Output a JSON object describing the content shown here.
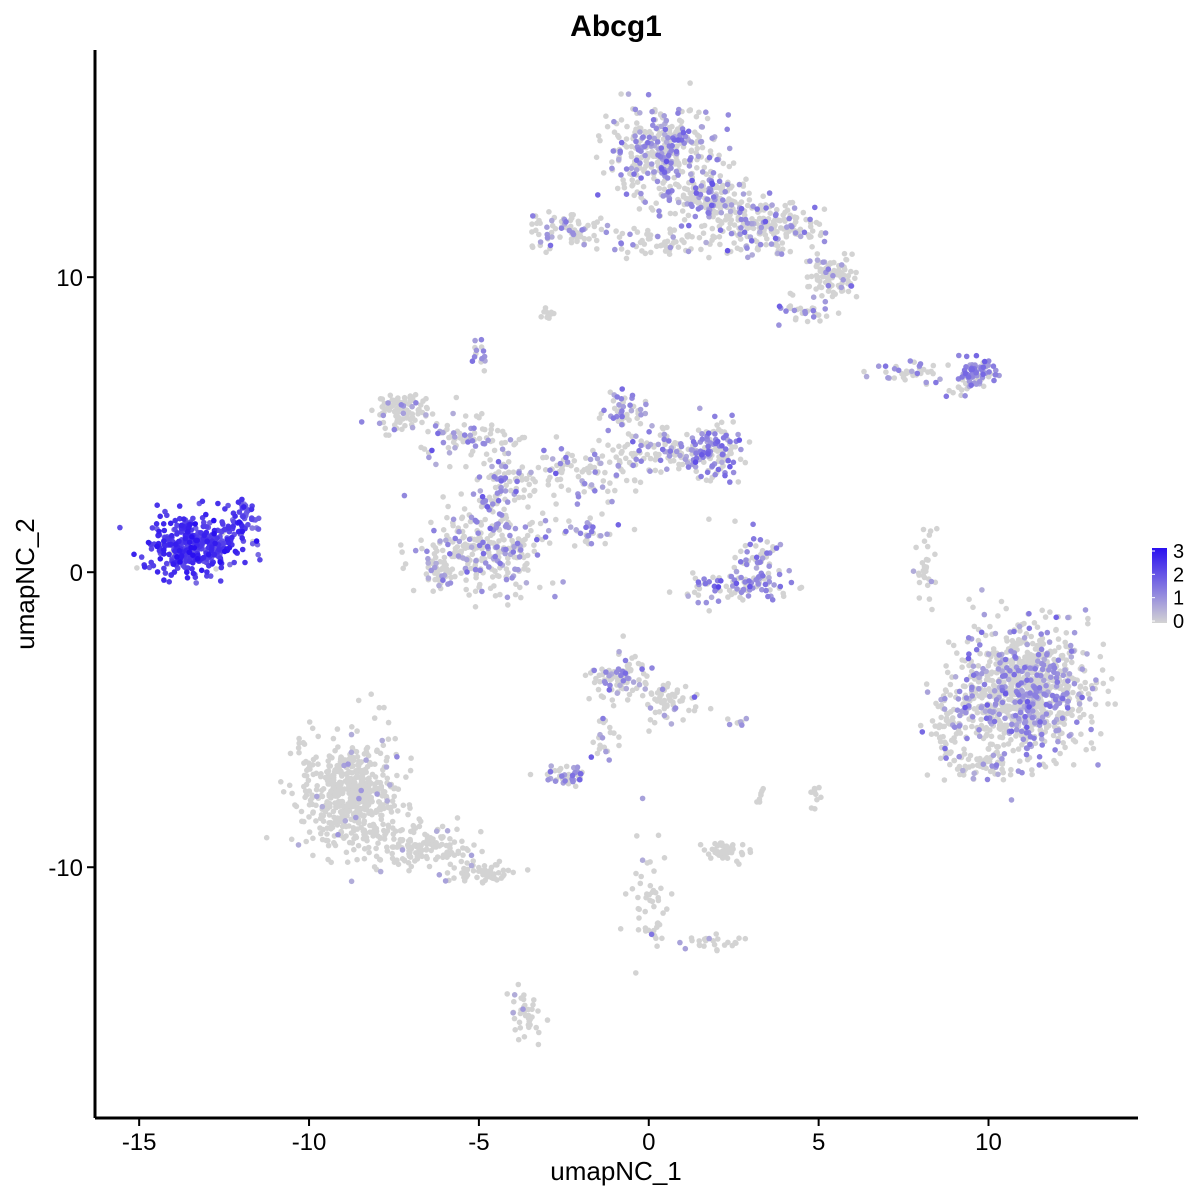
{
  "chart_data": {
    "type": "scatter",
    "title": "Abcg1",
    "xlabel": "umapNC_1",
    "ylabel": "umapNC_2",
    "xlim": [
      -16.3,
      14.4
    ],
    "ylim": [
      -18.5,
      17.7
    ],
    "xticks": [
      -15,
      -10,
      -5,
      0,
      5,
      10
    ],
    "xtick_labels": [
      "-15",
      "-10",
      "-5",
      "0",
      "5",
      "10"
    ],
    "yticks": [
      -10,
      0,
      10
    ],
    "ytick_labels": [
      "-10",
      "0",
      "10"
    ],
    "grid": false,
    "legend": {
      "placement": "right",
      "type": "colorbar",
      "range": [
        0,
        3
      ],
      "ticks": [
        0,
        1,
        2,
        3
      ],
      "tick_labels": [
        "0",
        "1",
        "2",
        "3"
      ],
      "low_color": "#d3d3d3",
      "high_color": "#2a10f0"
    },
    "point_color_low": "#d3d3d3",
    "point_color_high": "#2a10f0",
    "clusters": [
      {
        "center": [
          -13.4,
          0.9
        ],
        "spread": [
          0.9,
          0.6
        ],
        "n": 420,
        "expression_mean": 2.3,
        "expression_fraction": 0.97
      },
      {
        "center": [
          -11.9,
          1.9
        ],
        "spread": [
          0.3,
          0.4
        ],
        "n": 40,
        "expression_mean": 2.0,
        "expression_fraction": 0.95
      },
      {
        "center": [
          -8.8,
          -7.5
        ],
        "spread": [
          0.9,
          1.1
        ],
        "n": 550,
        "expression_mean": 0.6,
        "expression_fraction": 0.02
      },
      {
        "center": [
          -6.8,
          -9.3
        ],
        "spread": [
          1.0,
          0.5
        ],
        "n": 160,
        "expression_mean": 0.6,
        "expression_fraction": 0.03
      },
      {
        "center": [
          -4.9,
          -10.2
        ],
        "spread": [
          0.7,
          0.2
        ],
        "n": 60,
        "expression_mean": 0.6,
        "expression_fraction": 0.03
      },
      {
        "center": [
          -7.2,
          5.4
        ],
        "spread": [
          0.5,
          0.4
        ],
        "n": 90,
        "expression_mean": 0.8,
        "expression_fraction": 0.15
      },
      {
        "center": [
          -5.4,
          4.6
        ],
        "spread": [
          0.8,
          0.5
        ],
        "n": 80,
        "expression_mean": 1.0,
        "expression_fraction": 0.3
      },
      {
        "center": [
          -6.2,
          0.0
        ],
        "spread": [
          0.25,
          0.4
        ],
        "n": 40,
        "expression_mean": 0.8,
        "expression_fraction": 0.2
      },
      {
        "center": [
          -4.8,
          0.8
        ],
        "spread": [
          1.1,
          0.9
        ],
        "n": 300,
        "expression_mean": 1.0,
        "expression_fraction": 0.3
      },
      {
        "center": [
          -4.4,
          2.9
        ],
        "spread": [
          0.5,
          0.8
        ],
        "n": 70,
        "expression_mean": 1.1,
        "expression_fraction": 0.4
      },
      {
        "center": [
          -2.2,
          3.4
        ],
        "spread": [
          1.3,
          0.6
        ],
        "n": 120,
        "expression_mean": 1.0,
        "expression_fraction": 0.3
      },
      {
        "center": [
          -1.6,
          1.3
        ],
        "spread": [
          0.6,
          0.3
        ],
        "n": 30,
        "expression_mean": 1.1,
        "expression_fraction": 0.5
      },
      {
        "center": [
          -0.7,
          5.5
        ],
        "spread": [
          0.4,
          0.5
        ],
        "n": 50,
        "expression_mean": 1.1,
        "expression_fraction": 0.4
      },
      {
        "center": [
          0.5,
          4.1
        ],
        "spread": [
          0.9,
          0.5
        ],
        "n": 100,
        "expression_mean": 1.0,
        "expression_fraction": 0.35
      },
      {
        "center": [
          2.0,
          4.1
        ],
        "spread": [
          0.5,
          0.6
        ],
        "n": 120,
        "expression_mean": 1.2,
        "expression_fraction": 0.5
      },
      {
        "center": [
          -5.0,
          7.3
        ],
        "spread": [
          0.15,
          0.3
        ],
        "n": 15,
        "expression_mean": 1.1,
        "expression_fraction": 0.5
      },
      {
        "center": [
          -3.0,
          8.8
        ],
        "spread": [
          0.2,
          0.1
        ],
        "n": 10,
        "expression_mean": 0.6,
        "expression_fraction": 0.05
      },
      {
        "center": [
          0.4,
          14.2
        ],
        "spread": [
          1.0,
          1.0
        ],
        "n": 380,
        "expression_mean": 1.1,
        "expression_fraction": 0.35
      },
      {
        "center": [
          1.8,
          12.6
        ],
        "spread": [
          0.7,
          0.6
        ],
        "n": 150,
        "expression_mean": 1.1,
        "expression_fraction": 0.3
      },
      {
        "center": [
          3.5,
          11.7
        ],
        "spread": [
          0.9,
          0.6
        ],
        "n": 180,
        "expression_mean": 1.0,
        "expression_fraction": 0.25
      },
      {
        "center": [
          5.4,
          10.0
        ],
        "spread": [
          0.5,
          0.4
        ],
        "n": 100,
        "expression_mean": 0.9,
        "expression_fraction": 0.15
      },
      {
        "center": [
          -2.3,
          11.6
        ],
        "spread": [
          0.8,
          0.4
        ],
        "n": 80,
        "expression_mean": 1.0,
        "expression_fraction": 0.3
      },
      {
        "center": [
          0.3,
          11.2
        ],
        "spread": [
          0.9,
          0.3
        ],
        "n": 60,
        "expression_mean": 0.9,
        "expression_fraction": 0.15
      },
      {
        "center": [
          4.5,
          8.8
        ],
        "spread": [
          0.5,
          0.3
        ],
        "n": 30,
        "expression_mean": 1.1,
        "expression_fraction": 0.3
      },
      {
        "center": [
          9.7,
          6.8
        ],
        "spread": [
          0.4,
          0.3
        ],
        "n": 80,
        "expression_mean": 1.2,
        "expression_fraction": 0.7
      },
      {
        "center": [
          7.7,
          6.8
        ],
        "spread": [
          0.8,
          0.2
        ],
        "n": 40,
        "expression_mean": 1.0,
        "expression_fraction": 0.4
      },
      {
        "center": [
          9.1,
          6.2
        ],
        "spread": [
          0.3,
          0.2
        ],
        "n": 12,
        "expression_mean": 1.0,
        "expression_fraction": 0.4
      },
      {
        "center": [
          8.1,
          0.3
        ],
        "spread": [
          0.2,
          0.7
        ],
        "n": 30,
        "expression_mean": 0.8,
        "expression_fraction": 0.1
      },
      {
        "center": [
          3.0,
          -0.4
        ],
        "spread": [
          0.8,
          0.4
        ],
        "n": 70,
        "expression_mean": 1.2,
        "expression_fraction": 0.6
      },
      {
        "center": [
          3.2,
          0.6
        ],
        "spread": [
          0.4,
          0.5
        ],
        "n": 40,
        "expression_mean": 1.1,
        "expression_fraction": 0.4
      },
      {
        "center": [
          1.9,
          -0.5
        ],
        "spread": [
          0.6,
          0.3
        ],
        "n": 30,
        "expression_mean": 1.2,
        "expression_fraction": 0.6
      },
      {
        "center": [
          11.0,
          -4.0
        ],
        "spread": [
          1.2,
          1.4
        ],
        "n": 950,
        "expression_mean": 1.0,
        "expression_fraction": 0.28
      },
      {
        "center": [
          8.9,
          -5.2
        ],
        "spread": [
          0.4,
          0.7
        ],
        "n": 60,
        "expression_mean": 0.9,
        "expression_fraction": 0.15
      },
      {
        "center": [
          9.7,
          -6.6
        ],
        "spread": [
          0.7,
          0.3
        ],
        "n": 60,
        "expression_mean": 0.9,
        "expression_fraction": 0.2
      },
      {
        "center": [
          -0.9,
          -3.6
        ],
        "spread": [
          0.5,
          0.5
        ],
        "n": 90,
        "expression_mean": 1.0,
        "expression_fraction": 0.3
      },
      {
        "center": [
          0.5,
          -4.4
        ],
        "spread": [
          0.5,
          0.5
        ],
        "n": 60,
        "expression_mean": 0.9,
        "expression_fraction": 0.2
      },
      {
        "center": [
          -2.5,
          -6.9
        ],
        "spread": [
          0.4,
          0.2
        ],
        "n": 45,
        "expression_mean": 1.1,
        "expression_fraction": 0.5
      },
      {
        "center": [
          -1.3,
          -5.6
        ],
        "spread": [
          0.3,
          0.5
        ],
        "n": 20,
        "expression_mean": 0.9,
        "expression_fraction": 0.3
      },
      {
        "center": [
          2.3,
          -9.4
        ],
        "spread": [
          0.4,
          0.2
        ],
        "n": 45,
        "expression_mean": 0.6,
        "expression_fraction": 0.05
      },
      {
        "center": [
          0.0,
          -11.3
        ],
        "spread": [
          0.4,
          1.2
        ],
        "n": 50,
        "expression_mean": 0.6,
        "expression_fraction": 0.02
      },
      {
        "center": [
          2.0,
          -12.5
        ],
        "spread": [
          0.6,
          0.2
        ],
        "n": 25,
        "expression_mean": 0.6,
        "expression_fraction": 0.04
      },
      {
        "center": [
          -3.6,
          -14.9
        ],
        "spread": [
          0.3,
          0.6
        ],
        "n": 40,
        "expression_mean": 0.6,
        "expression_fraction": 0.05
      },
      {
        "center": [
          4.9,
          -7.6
        ],
        "spread": [
          0.1,
          0.3
        ],
        "n": 10,
        "expression_mean": 0.6,
        "expression_fraction": 0.02
      },
      {
        "center": [
          3.3,
          -7.8
        ],
        "spread": [
          0.1,
          0.3
        ],
        "n": 8,
        "expression_mean": 0.6,
        "expression_fraction": 0.02
      },
      {
        "center": [
          2.6,
          -5.0
        ],
        "spread": [
          0.2,
          0.1
        ],
        "n": 8,
        "expression_mean": 1.0,
        "expression_fraction": 0.4
      }
    ]
  }
}
